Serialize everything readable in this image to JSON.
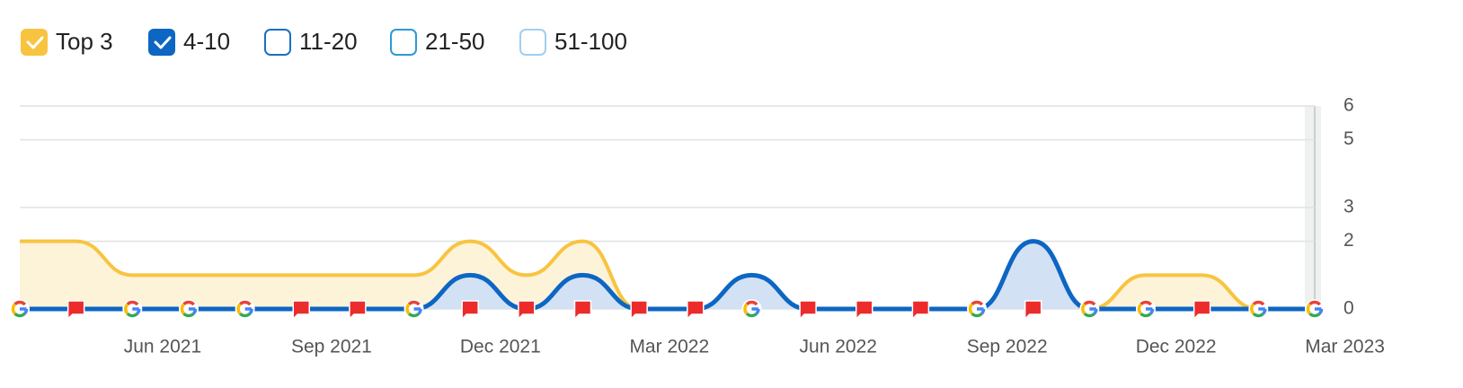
{
  "chart_data": {
    "type": "area",
    "series": [
      {
        "name": "Top 3",
        "color": "#f8c440",
        "visible": true,
        "values": [
          2,
          2,
          1,
          1,
          1,
          1,
          1,
          1,
          1,
          1,
          1,
          0,
          0,
          0,
          0,
          0,
          0,
          0,
          0,
          0,
          1,
          1,
          0,
          0
        ]
      },
      {
        "name": "4-10",
        "color": "#0d66c2",
        "visible": true,
        "values": [
          0,
          0,
          0,
          0,
          0,
          0,
          0,
          0,
          1,
          0,
          1,
          0,
          0,
          1,
          0,
          0,
          0,
          0,
          2,
          0,
          0,
          0,
          0,
          0
        ]
      },
      {
        "name": "11-20",
        "color": "#1a6fc4",
        "visible": false
      },
      {
        "name": "21-50",
        "color": "#2c9ad8",
        "visible": false
      },
      {
        "name": "51-100",
        "color": "#9fd0f0",
        "visible": false
      }
    ],
    "stacked": true,
    "x": [
      "2021-03",
      "2021-04",
      "2021-05",
      "2021-06",
      "2021-07",
      "2021-08",
      "2021-09",
      "2021-10",
      "2021-11",
      "2021-12",
      "2022-01",
      "2022-02",
      "2022-03",
      "2022-04",
      "2022-05",
      "2022-06",
      "2022-07",
      "2022-08",
      "2022-09",
      "2022-10",
      "2022-11",
      "2022-12",
      "2023-01",
      "2023-02"
    ],
    "xticks": [
      {
        "value": "2021-06",
        "label": "Jun 2021"
      },
      {
        "value": "2021-09",
        "label": "Sep 2021"
      },
      {
        "value": "2021-12",
        "label": "Dec 2021"
      },
      {
        "value": "2022-03",
        "label": "Mar 2022"
      },
      {
        "value": "2022-06",
        "label": "Jun 2022"
      },
      {
        "value": "2022-09",
        "label": "Sep 2022"
      },
      {
        "value": "2022-12",
        "label": "Dec 2022"
      },
      {
        "value": "2023-03",
        "label": "Mar 2023"
      }
    ],
    "ylim": [
      0,
      6
    ],
    "yticks": [
      0,
      2,
      3,
      5,
      6
    ],
    "grid": true,
    "legend": "top-left"
  }
}
